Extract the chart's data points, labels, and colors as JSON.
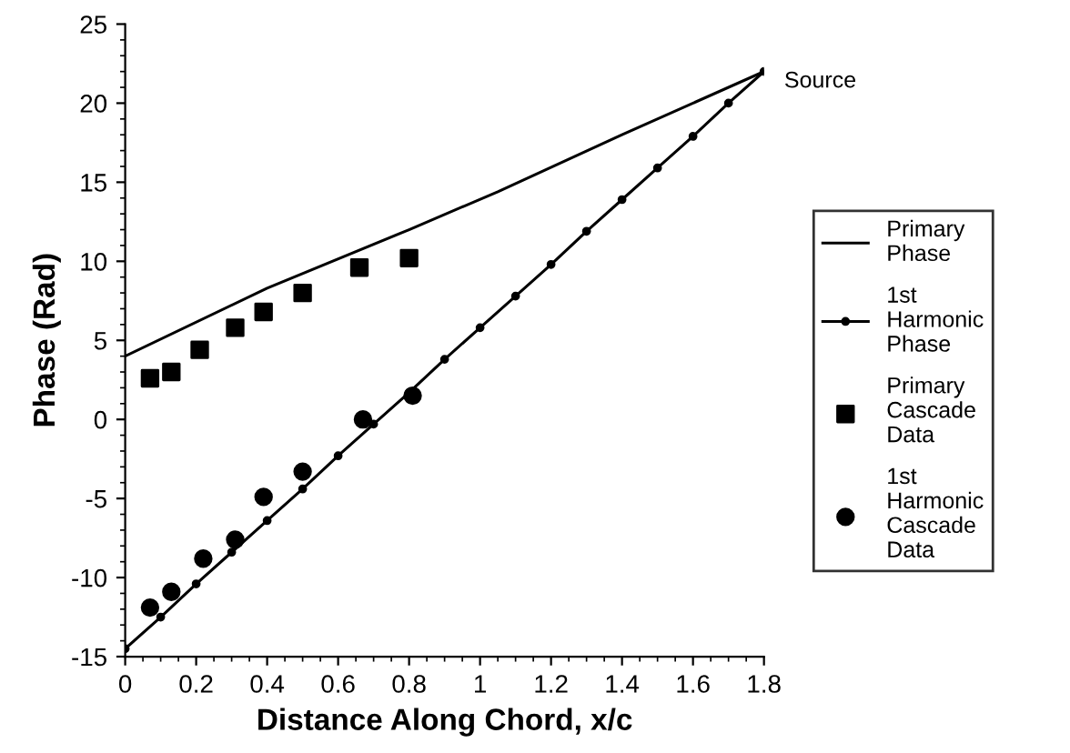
{
  "chart_data": {
    "type": "line",
    "xlabel": "Distance Along Chord, x/c",
    "ylabel": "Phase (Rad)",
    "xlim": [
      0,
      1.8
    ],
    "xticks": [
      0,
      0.2,
      0.4,
      0.6,
      0.8,
      1,
      1.2,
      1.4,
      1.6,
      1.8
    ],
    "ylim": [
      -15,
      25
    ],
    "yticks": [
      -15,
      -10,
      -5,
      0,
      5,
      10,
      15,
      20,
      25
    ],
    "grid": false,
    "legend": "right",
    "annotations": [
      {
        "text": "Source",
        "x": 1.8,
        "y": 22
      }
    ],
    "series": [
      {
        "name": "Primary Phase",
        "color": "#000000",
        "marker": "none",
        "line_style": "solid",
        "x": [
          0,
          0.4,
          0.8,
          1.05,
          1.4,
          1.8
        ],
        "values": [
          4,
          8.3,
          12,
          14.4,
          18,
          22
        ]
      },
      {
        "name": "1st Harmonic Phase",
        "color": "#000000",
        "marker": "circle",
        "line_style": "solid",
        "x": [
          0,
          0.1,
          0.2,
          0.3,
          0.4,
          0.5,
          0.6,
          0.7,
          0.8,
          0.9,
          1.0,
          1.1,
          1.2,
          1.3,
          1.4,
          1.5,
          1.6,
          1.7,
          1.8
        ],
        "values": [
          -14.5,
          -12.5,
          -10.4,
          -8.4,
          -6.4,
          -4.4,
          -2.3,
          -0.3,
          1.7,
          3.8,
          5.8,
          7.8,
          9.8,
          11.9,
          13.9,
          15.9,
          17.9,
          20.0,
          22.0
        ]
      },
      {
        "name": "Primary Cascade Data",
        "type": "scatter",
        "color": "#000000",
        "marker": "square",
        "x": [
          0.07,
          0.13,
          0.21,
          0.31,
          0.39,
          0.5,
          0.66,
          0.8
        ],
        "values": [
          2.6,
          3.0,
          4.4,
          5.8,
          6.8,
          8.0,
          9.6,
          10.2
        ]
      },
      {
        "name": "1st Harmonic Cascade Data",
        "type": "scatter",
        "color": "#000000",
        "marker": "circle",
        "x": [
          0.07,
          0.13,
          0.22,
          0.31,
          0.39,
          0.5,
          0.67,
          0.81
        ],
        "values": [
          -11.9,
          -10.9,
          -8.8,
          -7.6,
          -4.9,
          -3.3,
          0.0,
          1.5
        ]
      }
    ]
  }
}
